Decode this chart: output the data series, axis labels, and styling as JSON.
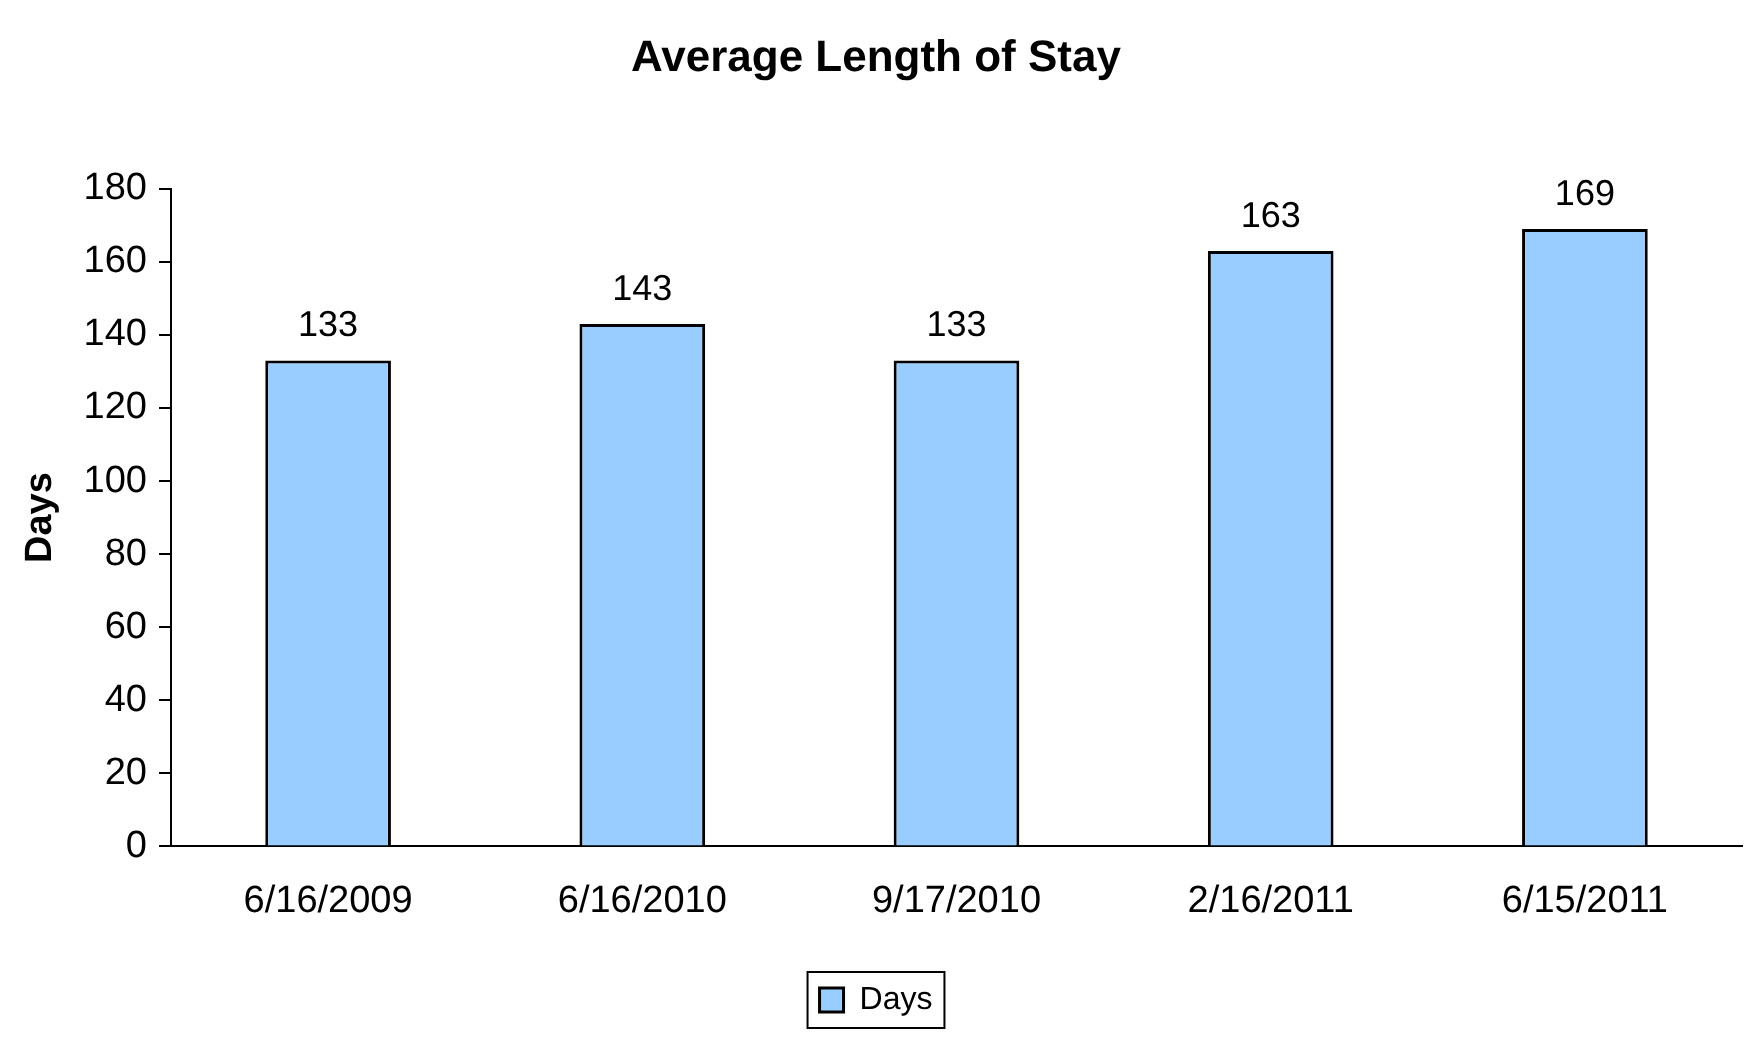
{
  "chart_data": {
    "type": "bar",
    "title": "Average Length of Stay",
    "ylabel": "Days",
    "categories": [
      "6/16/2009",
      "6/16/2010",
      "9/17/2010",
      "2/16/2011",
      "6/15/2011"
    ],
    "series": [
      {
        "name": "Days",
        "color": "#99ccff",
        "values": [
          133,
          143,
          133,
          163,
          169
        ]
      }
    ],
    "ylim": [
      0,
      180
    ],
    "yticks": [
      0,
      20,
      40,
      60,
      80,
      100,
      120,
      140,
      160,
      180
    ],
    "data_labels": true,
    "grid": false,
    "legend": "bottom"
  }
}
